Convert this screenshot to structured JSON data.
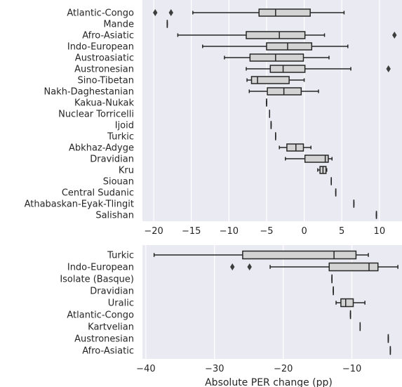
{
  "chart_data": [
    {
      "type": "boxplot",
      "orientation": "horizontal",
      "xlim": [
        -21.5,
        13
      ],
      "xticks": [
        -20,
        -15,
        -10,
        -5,
        0,
        5,
        10
      ],
      "grid": true,
      "categories": [
        "Atlantic-Congo",
        "Mande",
        "Afro-Asiatic",
        "Indo-European",
        "Austroasiatic",
        "Austronesian",
        "Sino-Tibetan",
        "Nakh-Daghestanian",
        "Kakua-Nukak",
        "Nuclear Torricelli",
        "Ijoid",
        "Turkic",
        "Abkhaz-Adyge",
        "Dravidian",
        "Kru",
        "Siouan",
        "Central Sudanic",
        "Athabaskan-Eyak-Tlingit",
        "Salishan"
      ],
      "boxes": [
        {
          "whislo": -14.8,
          "q1": -6.0,
          "med": -3.8,
          "q3": 0.8,
          "whishi": 5.3,
          "fliers": [
            -19.8,
            -17.7
          ]
        },
        {
          "whislo": -18.2,
          "q1": -18.2,
          "med": -18.2,
          "q3": -18.2,
          "whishi": -18.2,
          "fliers": []
        },
        {
          "whislo": -16.8,
          "q1": -7.7,
          "med": -3.3,
          "q3": 0.1,
          "whishi": 2.7,
          "fliers": [
            12.0
          ]
        },
        {
          "whislo": -13.5,
          "q1": -5.0,
          "med": -2.2,
          "q3": 1.0,
          "whishi": 5.8,
          "fliers": []
        },
        {
          "whislo": -10.6,
          "q1": -7.2,
          "med": -3.8,
          "q3": -0.1,
          "whishi": 3.3,
          "fliers": []
        },
        {
          "whislo": -7.7,
          "q1": -4.5,
          "med": -2.8,
          "q3": 0.1,
          "whishi": 6.2,
          "fliers": [
            11.2
          ]
        },
        {
          "whislo": -7.6,
          "q1": -7.0,
          "med": -6.2,
          "q3": -2.0,
          "whishi": 0.0,
          "fliers": []
        },
        {
          "whislo": -7.3,
          "q1": -4.9,
          "med": -2.7,
          "q3": -0.4,
          "whishi": 1.9,
          "fliers": []
        },
        {
          "whislo": -5.0,
          "q1": -5.0,
          "med": -5.0,
          "q3": -5.0,
          "whishi": -5.0,
          "fliers": []
        },
        {
          "whislo": -4.6,
          "q1": -4.6,
          "med": -4.6,
          "q3": -4.6,
          "whishi": -4.6,
          "fliers": []
        },
        {
          "whislo": -4.4,
          "q1": -4.4,
          "med": -4.4,
          "q3": -4.4,
          "whishi": -4.4,
          "fliers": []
        },
        {
          "whislo": -3.8,
          "q1": -3.8,
          "med": -3.8,
          "q3": -3.8,
          "whishi": -3.8,
          "fliers": []
        },
        {
          "whislo": -3.3,
          "q1": -2.3,
          "med": -1.1,
          "q3": -0.1,
          "whishi": 0.9,
          "fliers": []
        },
        {
          "whislo": -2.5,
          "q1": 0.1,
          "med": 2.8,
          "q3": 3.2,
          "whishi": 3.7,
          "fliers": []
        },
        {
          "whislo": 1.8,
          "q1": 2.1,
          "med": 2.5,
          "q3": 2.9,
          "whishi": 3.0,
          "fliers": []
        },
        {
          "whislo": 3.6,
          "q1": 3.6,
          "med": 3.6,
          "q3": 3.6,
          "whishi": 3.6,
          "fliers": []
        },
        {
          "whislo": 4.2,
          "q1": 4.2,
          "med": 4.2,
          "q3": 4.2,
          "whishi": 4.2,
          "fliers": []
        },
        {
          "whislo": 6.6,
          "q1": 6.6,
          "med": 6.6,
          "q3": 6.6,
          "whishi": 6.6,
          "fliers": []
        },
        {
          "whislo": 9.6,
          "q1": 9.6,
          "med": 9.6,
          "q3": 9.6,
          "whishi": 9.6,
          "fliers": []
        }
      ]
    },
    {
      "type": "boxplot",
      "orientation": "horizontal",
      "xlim": [
        -40.5,
        -2.7
      ],
      "xticks": [
        -40,
        -30,
        -20,
        -10
      ],
      "xlabel": "Absolute PER change (pp)",
      "grid": true,
      "categories": [
        "Turkic",
        "Indo-European",
        "Isolate (Basque)",
        "Dravidian",
        "Uralic",
        "Atlantic-Congo",
        "Kartvelian",
        "Austronesian",
        "Afro-Asiatic"
      ],
      "boxes": [
        {
          "whislo": -38.8,
          "q1": -25.9,
          "med": -12.6,
          "q3": -9.4,
          "whishi": -7.6,
          "fliers": []
        },
        {
          "whislo": -21.9,
          "q1": -13.3,
          "med": -7.5,
          "q3": -6.2,
          "whishi": -3.3,
          "fliers": [
            -27.4,
            -24.9
          ]
        },
        {
          "whislo": -12.9,
          "q1": -12.9,
          "med": -12.9,
          "q3": -12.9,
          "whishi": -12.9,
          "fliers": []
        },
        {
          "whislo": -12.7,
          "q1": -12.7,
          "med": -12.7,
          "q3": -12.7,
          "whishi": -12.7,
          "fliers": []
        },
        {
          "whislo": -12.3,
          "q1": -11.6,
          "med": -10.9,
          "q3": -9.8,
          "whishi": -8.1,
          "fliers": []
        },
        {
          "whislo": -10.2,
          "q1": -10.2,
          "med": -10.2,
          "q3": -10.2,
          "whishi": -10.2,
          "fliers": []
        },
        {
          "whislo": -8.8,
          "q1": -8.8,
          "med": -8.8,
          "q3": -8.8,
          "whishi": -8.8,
          "fliers": []
        },
        {
          "whislo": -4.7,
          "q1": -4.7,
          "med": -4.7,
          "q3": -4.7,
          "whishi": -4.7,
          "fliers": []
        },
        {
          "whislo": -4.4,
          "q1": -4.4,
          "med": -4.4,
          "q3": -4.4,
          "whishi": -4.4,
          "fliers": []
        }
      ]
    }
  ]
}
